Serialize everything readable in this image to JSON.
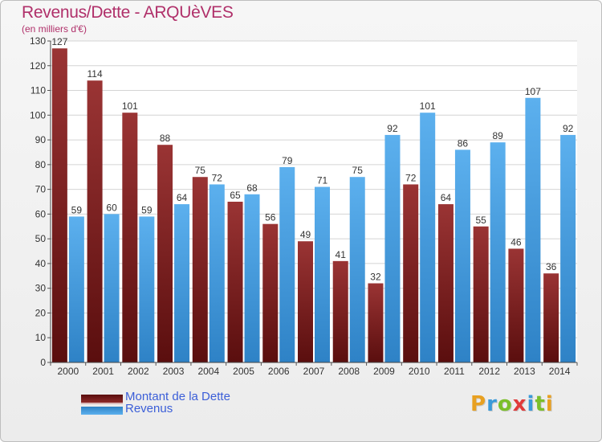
{
  "header": {
    "title": "Revenus/Dette - ARQUèVES",
    "subtitle": "(en milliers d'€)"
  },
  "chart_data": {
    "type": "bar",
    "categories": [
      "2000",
      "2001",
      "2002",
      "2003",
      "2004",
      "2005",
      "2006",
      "2007",
      "2008",
      "2009",
      "2010",
      "2011",
      "2012",
      "2013",
      "2014"
    ],
    "series": [
      {
        "name": "Montant de la Dette",
        "color": "#8e2a2a",
        "values": [
          127,
          114,
          101,
          88,
          75,
          65,
          56,
          49,
          41,
          32,
          72,
          64,
          55,
          46,
          36
        ]
      },
      {
        "name": "Revenus",
        "color": "#4a9fe3",
        "values": [
          59,
          60,
          59,
          64,
          72,
          68,
          79,
          71,
          75,
          92,
          101,
          86,
          89,
          107,
          92
        ]
      }
    ],
    "yticks": [
      0,
      10,
      20,
      30,
      40,
      50,
      60,
      70,
      80,
      90,
      100,
      110,
      120,
      130
    ],
    "ylim": [
      0,
      130
    ],
    "grid": true,
    "legend_position": "bottom-left"
  },
  "legend": {
    "items": [
      {
        "label": "Montant de la Dette",
        "color": "#8e2a2a"
      },
      {
        "label": "Revenus",
        "color": "#4a9fe3"
      }
    ]
  },
  "logo": {
    "letters": [
      "P",
      "r",
      "o",
      "x",
      "i",
      "t",
      "i"
    ],
    "colors": [
      "#e8a020",
      "#3a9ad9",
      "#7bbf2a",
      "#e03a3a",
      "#3a9ad9",
      "#7bbf2a",
      "#e8a020"
    ]
  }
}
